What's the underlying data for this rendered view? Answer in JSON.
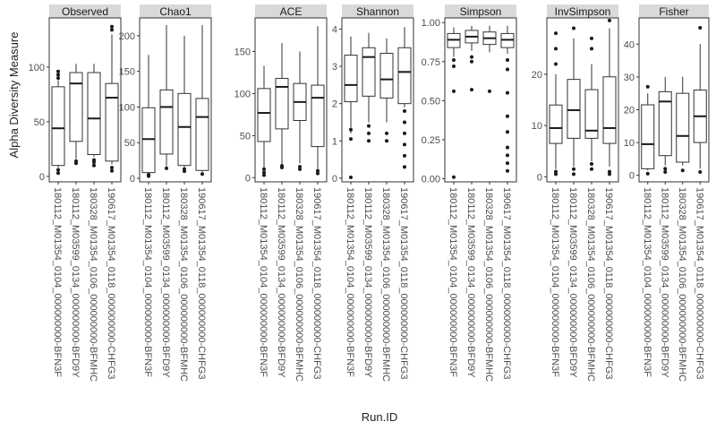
{
  "chart_data": {
    "type": "boxplot-facets",
    "ylabel": "Alpha Diversity Measure",
    "xlabel": "Run.ID",
    "categories": [
      "180112_M01354_0104_000000000-BFN3F",
      "180112_M03599_0134_000000000-BFD9Y",
      "180328_M01354_0106_000000000-BFMHC",
      "190617_M01354_0118_000000000-CHFG3"
    ],
    "facets": [
      {
        "name": "Observed",
        "ylim": [
          -5,
          145
        ],
        "ticks": [
          0,
          50,
          100
        ],
        "boxes": [
          {
            "min": 8,
            "q1": 10,
            "median": 44,
            "q3": 82,
            "max": 88,
            "outliers": [
              3,
              6,
              90,
              93,
              96
            ]
          },
          {
            "min": 16,
            "q1": 32,
            "median": 85,
            "q3": 95,
            "max": 103,
            "outliers": [
              12,
              14
            ]
          },
          {
            "min": 18,
            "q1": 20,
            "median": 53,
            "q3": 95,
            "max": 103,
            "outliers": [
              10,
              13,
              15
            ]
          },
          {
            "min": 11,
            "q1": 14,
            "median": 72,
            "q3": 85,
            "max": 130,
            "outliers": [
              5,
              8,
              134,
              137
            ]
          }
        ]
      },
      {
        "name": "Chao1",
        "ylim": [
          -5,
          225
        ],
        "ticks": [
          0,
          50,
          100,
          150,
          200
        ],
        "boxes": [
          {
            "min": 6,
            "q1": 8,
            "median": 55,
            "q3": 99,
            "max": 173,
            "outliers": [
              3,
              5
            ]
          },
          {
            "min": 17,
            "q1": 34,
            "median": 100,
            "q3": 124,
            "max": 215,
            "outliers": [
              14
            ]
          },
          {
            "min": 16,
            "q1": 18,
            "median": 72,
            "q3": 119,
            "max": 200,
            "outliers": [
              10,
              13
            ]
          },
          {
            "min": 9,
            "q1": 11,
            "median": 86,
            "q3": 112,
            "max": 215,
            "outliers": [
              6
            ]
          }
        ]
      },
      {
        "name": "ACE",
        "ylim": [
          -5,
          190
        ],
        "ticks": [
          0,
          50,
          100,
          150
        ],
        "boxes": [
          {
            "min": 5,
            "q1": 43,
            "median": 77,
            "q3": 106,
            "max": 133,
            "outliers": [
              3,
              6,
              10
            ]
          },
          {
            "min": 16,
            "q1": 58,
            "median": 108,
            "q3": 118,
            "max": 160,
            "outliers": [
              12,
              14
            ]
          },
          {
            "min": 17,
            "q1": 68,
            "median": 90,
            "q3": 112,
            "max": 150,
            "outliers": [
              10,
              13
            ]
          },
          {
            "min": 10,
            "q1": 37,
            "median": 95,
            "q3": 110,
            "max": 180,
            "outliers": [
              5,
              8
            ]
          }
        ]
      },
      {
        "name": "Shannon",
        "ylim": [
          -0.1,
          4.3
        ],
        "ticks": [
          0,
          1,
          2,
          3,
          4
        ],
        "boxes": [
          {
            "min": 1.2,
            "q1": 2.05,
            "median": 2.5,
            "q3": 3.3,
            "max": 3.8,
            "outliers": [
              0.02,
              1.05,
              1.3
            ]
          },
          {
            "min": 1.5,
            "q1": 2.2,
            "median": 3.25,
            "q3": 3.5,
            "max": 3.9,
            "outliers": [
              1.0,
              1.2,
              1.4
            ]
          },
          {
            "min": 1.5,
            "q1": 2.15,
            "median": 2.65,
            "q3": 3.35,
            "max": 3.75,
            "outliers": [
              1.0,
              1.2
            ]
          },
          {
            "min": 1.9,
            "q1": 2.0,
            "median": 2.85,
            "q3": 3.5,
            "max": 4.05,
            "outliers": [
              0.3,
              0.6,
              0.9,
              1.2,
              1.5,
              1.8
            ]
          }
        ]
      },
      {
        "name": "Simpson",
        "ylim": [
          -0.02,
          1.03
        ],
        "ticks": [
          0.0,
          0.25,
          0.5,
          0.75,
          1.0
        ],
        "ticklabels": [
          "0.00",
          "0.25",
          "0.50",
          "0.75",
          "1.00"
        ],
        "boxes": [
          {
            "min": 0.78,
            "q1": 0.84,
            "median": 0.89,
            "q3": 0.93,
            "max": 0.97,
            "outliers": [
              0.01,
              0.56,
              0.72,
              0.76
            ]
          },
          {
            "min": 0.82,
            "q1": 0.87,
            "median": 0.91,
            "q3": 0.95,
            "max": 0.98,
            "outliers": [
              0.57,
              0.75,
              0.78
            ]
          },
          {
            "min": 0.81,
            "q1": 0.86,
            "median": 0.9,
            "q3": 0.94,
            "max": 0.98,
            "outliers": [
              0.56
            ]
          },
          {
            "min": 0.8,
            "q1": 0.84,
            "median": 0.89,
            "q3": 0.93,
            "max": 0.98,
            "outliers": [
              0.05,
              0.1,
              0.15,
              0.2,
              0.3,
              0.4,
              0.55,
              0.7,
              0.76
            ]
          }
        ]
      },
      {
        "name": "InvSimpson",
        "ylim": [
          -1,
          31
        ],
        "ticks": [
          0,
          10,
          20
        ],
        "boxes": [
          {
            "min": 1.5,
            "q1": 6.5,
            "median": 9.5,
            "q3": 14,
            "max": 20,
            "outliers": [
              0.5,
              1.0,
              22,
              25,
              28
            ]
          },
          {
            "min": 2,
            "q1": 7.5,
            "median": 13,
            "q3": 19,
            "max": 27,
            "outliers": [
              0.5,
              1.5,
              29
            ]
          },
          {
            "min": 3,
            "q1": 7.5,
            "median": 9,
            "q3": 17,
            "max": 22,
            "outliers": [
              1.5,
              2.5,
              25,
              27
            ]
          },
          {
            "min": 2,
            "q1": 6.5,
            "median": 9.5,
            "q3": 19.5,
            "max": 29,
            "outliers": [
              0.5,
              1.0,
              30.5
            ]
          }
        ]
      },
      {
        "name": "Fisher",
        "ylim": [
          -2,
          48
        ],
        "ticks": [
          0,
          10,
          20,
          30,
          40
        ],
        "boxes": [
          {
            "min": 1.5,
            "q1": 2,
            "median": 9.5,
            "q3": 21.5,
            "max": 25,
            "outliers": [
              0.5,
              27
            ]
          },
          {
            "min": 3,
            "q1": 6,
            "median": 22.5,
            "q3": 25.5,
            "max": 30,
            "outliers": [
              1.0,
              2.0
            ]
          },
          {
            "min": 3,
            "q1": 4,
            "median": 12,
            "q3": 25,
            "max": 30,
            "outliers": [
              1.5
            ]
          },
          {
            "min": 2,
            "q1": 10,
            "median": 18,
            "q3": 26,
            "max": 40,
            "outliers": [
              1.0,
              45
            ]
          }
        ]
      }
    ]
  }
}
